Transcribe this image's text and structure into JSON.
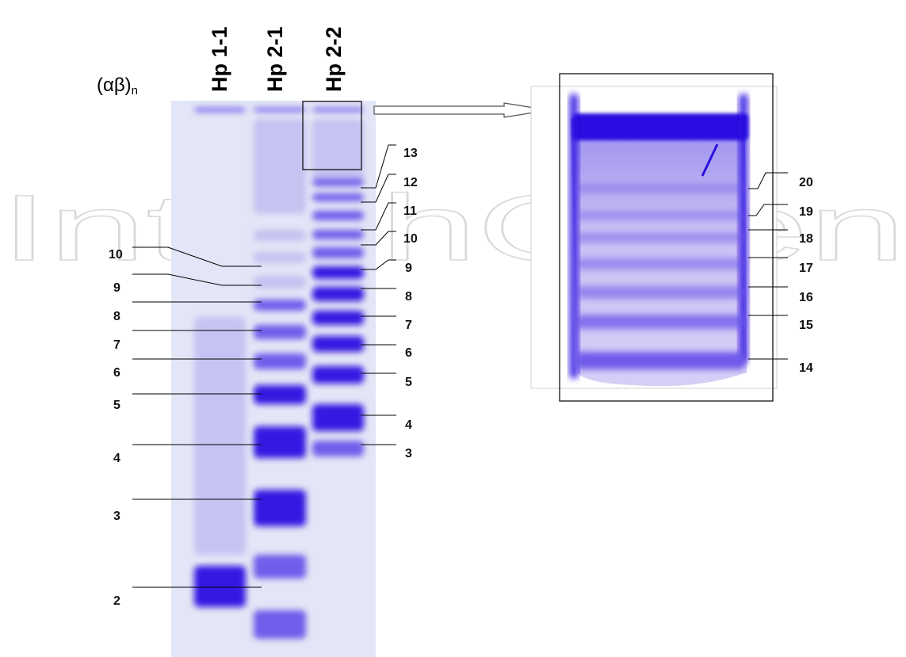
{
  "header": {
    "series_label_main": "(αβ)",
    "series_label_sub": "n"
  },
  "lanes": [
    "Hp 1-1",
    "Hp 2-1",
    "Hp 2-2"
  ],
  "watermark": "IntechOpen",
  "left_labels": [
    "10",
    "9",
    "8",
    "7",
    "6",
    "5",
    "4",
    "3",
    "2"
  ],
  "right_labels": [
    "13",
    "12",
    "11",
    "10",
    "9",
    "8",
    "7",
    "6",
    "5",
    "4",
    "3"
  ],
  "inset_labels": [
    "20",
    "19",
    "18",
    "17",
    "16",
    "15",
    "14"
  ],
  "colors": {
    "gel_background": "#e3e6f6",
    "band_strong": "#2a10e0",
    "band_mid": "#6a55ea",
    "band_faint": "#b9b2f0",
    "leader_line": "#000000"
  }
}
